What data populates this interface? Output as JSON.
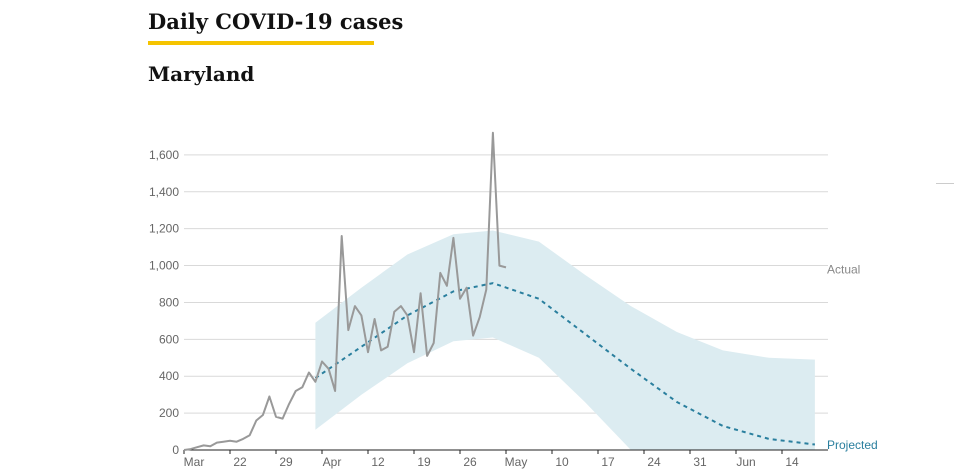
{
  "header": {
    "title": "Daily COVID-19 cases",
    "subtitle": "Maryland"
  },
  "colors": {
    "accent_underline": "#f5c400",
    "actual_line": "#999999",
    "projected_line": "#2a7f9e",
    "projection_band": "#dcecf1",
    "grid": "#d9d9d9"
  },
  "chart_data": {
    "type": "line",
    "title": "Daily COVID-19 cases",
    "subtitle": "Maryland",
    "ylim": [
      0,
      1800
    ],
    "yticks": [
      0,
      200,
      400,
      600,
      800,
      1000,
      1200,
      1400,
      1600
    ],
    "ytick_labels": [
      "0",
      "200",
      "400",
      "600",
      "800",
      "1,000",
      "1,200",
      "1,400",
      "1,600"
    ],
    "x_start": "2020-03-15",
    "x_end": "2020-06-21",
    "x_ticks": [
      {
        "date": "2020-03-15",
        "label": "Mar"
      },
      {
        "date": "2020-03-22",
        "label": "22"
      },
      {
        "date": "2020-03-29",
        "label": "29"
      },
      {
        "date": "2020-04-05",
        "label": "Apr"
      },
      {
        "date": "2020-04-12",
        "label": "12"
      },
      {
        "date": "2020-04-19",
        "label": "19"
      },
      {
        "date": "2020-04-26",
        "label": "26"
      },
      {
        "date": "2020-05-03",
        "label": "May"
      },
      {
        "date": "2020-05-10",
        "label": "10"
      },
      {
        "date": "2020-05-17",
        "label": "17"
      },
      {
        "date": "2020-05-24",
        "label": "24"
      },
      {
        "date": "2020-05-31",
        "label": "31"
      },
      {
        "date": "2020-06-07",
        "label": "Jun"
      },
      {
        "date": "2020-06-14",
        "label": "14"
      }
    ],
    "grid": true,
    "series": [
      {
        "name": "Actual",
        "style": "solid",
        "dates": [
          "2020-03-15",
          "2020-03-16",
          "2020-03-17",
          "2020-03-18",
          "2020-03-19",
          "2020-03-20",
          "2020-03-21",
          "2020-03-22",
          "2020-03-23",
          "2020-03-24",
          "2020-03-25",
          "2020-03-26",
          "2020-03-27",
          "2020-03-28",
          "2020-03-29",
          "2020-03-30",
          "2020-03-31",
          "2020-04-01",
          "2020-04-02",
          "2020-04-03",
          "2020-04-04",
          "2020-04-05",
          "2020-04-06",
          "2020-04-07",
          "2020-04-08",
          "2020-04-09",
          "2020-04-10",
          "2020-04-11",
          "2020-04-12",
          "2020-04-13",
          "2020-04-14",
          "2020-04-15",
          "2020-04-16",
          "2020-04-17",
          "2020-04-18",
          "2020-04-19",
          "2020-04-20",
          "2020-04-21",
          "2020-04-22",
          "2020-04-23",
          "2020-04-24",
          "2020-04-25",
          "2020-04-26",
          "2020-04-27",
          "2020-04-28",
          "2020-04-29",
          "2020-04-30",
          "2020-05-01",
          "2020-05-02",
          "2020-05-03"
        ],
        "values": [
          0,
          5,
          15,
          25,
          20,
          40,
          45,
          50,
          45,
          60,
          80,
          160,
          190,
          290,
          180,
          170,
          250,
          320,
          340,
          420,
          370,
          480,
          440,
          320,
          1160,
          650,
          780,
          730,
          530,
          710,
          540,
          560,
          750,
          780,
          730,
          530,
          850,
          510,
          580,
          960,
          890,
          1150,
          820,
          880,
          620,
          720,
          870,
          1720,
          1000,
          990
        ]
      },
      {
        "name": "Projected",
        "style": "dashed",
        "dates": [
          "2020-04-04",
          "2020-04-11",
          "2020-04-18",
          "2020-04-25",
          "2020-05-01",
          "2020-05-08",
          "2020-05-15",
          "2020-05-22",
          "2020-05-29",
          "2020-06-05",
          "2020-06-12",
          "2020-06-19"
        ],
        "values": [
          390,
          560,
          730,
          860,
          905,
          820,
          630,
          440,
          260,
          130,
          60,
          30
        ]
      }
    ],
    "band": {
      "dates": [
        "2020-04-04",
        "2020-04-11",
        "2020-04-18",
        "2020-04-25",
        "2020-05-01",
        "2020-05-08",
        "2020-05-15",
        "2020-05-22",
        "2020-05-29",
        "2020-06-05",
        "2020-06-12",
        "2020-06-19"
      ],
      "low": [
        110,
        300,
        470,
        590,
        610,
        500,
        260,
        0,
        0,
        0,
        0,
        0
      ],
      "high": [
        690,
        880,
        1060,
        1170,
        1190,
        1130,
        950,
        780,
        640,
        540,
        500,
        490
      ]
    },
    "labels": {
      "actual": "Actual",
      "projected": "Projected"
    }
  }
}
